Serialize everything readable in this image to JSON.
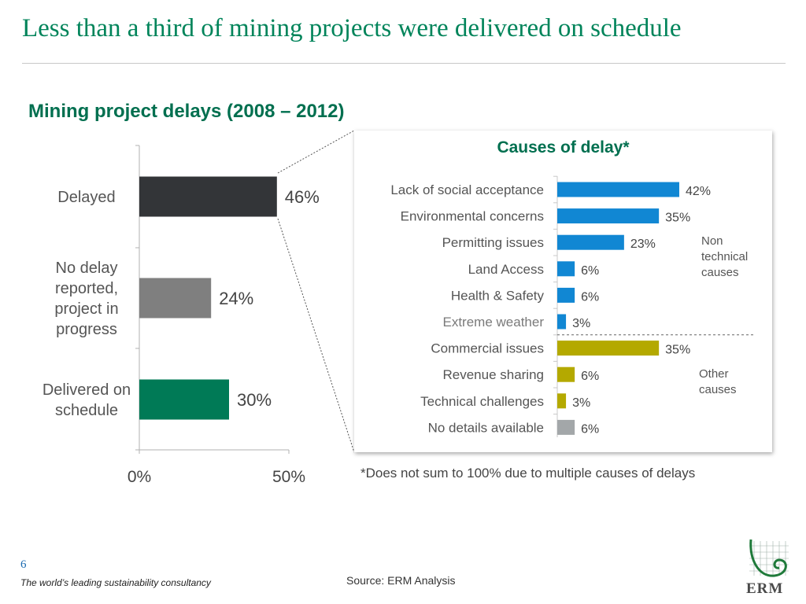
{
  "slide": {
    "title": "Less than a third of mining projects were delivered on schedule",
    "page_number": "6",
    "tagline": "The world’s leading sustainability consultancy",
    "source": "Source: ERM Analysis",
    "footnote": "*Does not sum to 100% due to multiple causes of delays",
    "logo_text": "ERM"
  },
  "colors": {
    "title": "#00845a",
    "heading": "#006f4f",
    "delayed": "#333538",
    "no_delay": "#7f7f7f",
    "on_schedule": "#007a56",
    "non_technical": "#1187d3",
    "other": "#b4a900",
    "no_details": "#a3a7a9"
  },
  "chart_data": [
    {
      "type": "bar",
      "orientation": "horizontal",
      "title": "Mining project delays  (2008 – 2012)",
      "categories": [
        [
          "Delayed"
        ],
        [
          "No delay",
          "reported,",
          "project in",
          "progress"
        ],
        [
          "Delivered on",
          "schedule"
        ]
      ],
      "values": [
        46,
        24,
        30
      ],
      "value_labels": [
        "46%",
        "24%",
        "30%"
      ],
      "bar_colors": [
        "#333538",
        "#7f7f7f",
        "#007a56"
      ],
      "xlim": [
        0,
        50
      ],
      "x_ticks": [
        0,
        50
      ],
      "x_tick_labels": [
        "0%",
        "50%"
      ],
      "grid": false
    },
    {
      "type": "bar",
      "orientation": "horizontal",
      "title": "Causes of delay*",
      "categories": [
        "Lack of social acceptance",
        "Environmental concerns",
        "Permitting issues",
        "Land Access",
        "Health & Safety",
        "Extreme weather",
        "Commercial issues",
        "Revenue sharing",
        "Technical challenges",
        "No details available"
      ],
      "values": [
        42,
        35,
        23,
        6,
        6,
        3,
        35,
        6,
        3,
        6
      ],
      "value_labels": [
        "42%",
        "35%",
        "23%",
        "6%",
        "6%",
        "3%",
        "35%",
        "6%",
        "3%",
        "6%"
      ],
      "groups": [
        "non_technical",
        "non_technical",
        "non_technical",
        "non_technical",
        "non_technical",
        "non_technical",
        "other",
        "other",
        "other",
        "no_details"
      ],
      "group_annotations": [
        {
          "text": [
            "Non",
            "technical",
            "causes"
          ]
        },
        {
          "text": [
            "Other",
            "causes"
          ]
        }
      ],
      "xlim": [
        0,
        42
      ],
      "grid": false
    }
  ]
}
